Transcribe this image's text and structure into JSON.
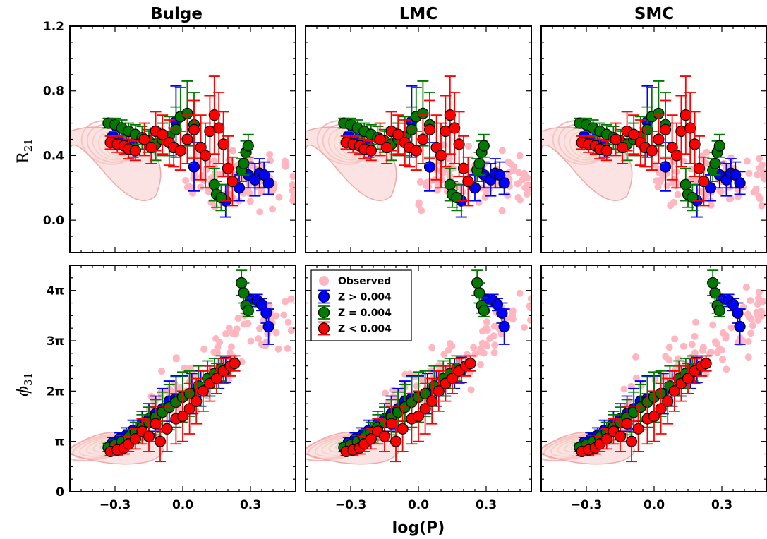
{
  "figure": {
    "xlabel": "log(P)",
    "panels": [
      "Bulge",
      "LMC",
      "SMC"
    ]
  },
  "legend": {
    "placement": "upper-left of bottom-middle panel",
    "entries": [
      {
        "label": "Observed",
        "color": "#ffb6c1"
      },
      {
        "label": "Z > 0.004",
        "color": "#0000ff"
      },
      {
        "label": "Z = 0.004",
        "color": "#007a00"
      },
      {
        "label": "Z < 0.004",
        "color": "#ff0000"
      }
    ]
  },
  "chart_data": [
    {
      "type": "scatter",
      "row": "R21",
      "ylabel": "R21",
      "xlim": [
        -0.5,
        0.5
      ],
      "ylim": [
        -0.2,
        1.2
      ],
      "xticks": [
        -0.3,
        0.0,
        0.3
      ],
      "xtick_labels": [
        "−0.3",
        "0.0",
        "0.3"
      ],
      "yticks": [
        0.0,
        0.4,
        0.8,
        1.2
      ],
      "ytick_labels": [
        "0.0",
        "0.4",
        "0.8",
        "1.2"
      ],
      "series": [
        {
          "name": "Z > 0.004",
          "color": "#0000ff",
          "points": [
            [
              -0.31,
              0.52,
              0.05
            ],
            [
              -0.28,
              0.49,
              0.05
            ],
            [
              -0.25,
              0.47,
              0.06
            ],
            [
              -0.22,
              0.46,
              0.07
            ],
            [
              -0.03,
              0.61,
              0.22
            ],
            [
              0.05,
              0.33,
              0.15
            ],
            [
              0.19,
              0.12,
              0.1
            ],
            [
              0.25,
              0.2,
              0.08
            ],
            [
              0.29,
              0.28,
              0.08
            ],
            [
              0.32,
              0.25,
              0.1
            ],
            [
              0.34,
              0.29,
              0.09
            ],
            [
              0.36,
              0.28,
              0.08
            ],
            [
              0.38,
              0.23,
              0.07
            ]
          ]
        },
        {
          "name": "Z = 0.004",
          "color": "#007a00",
          "points": [
            [
              -0.33,
              0.6,
              0.03
            ],
            [
              -0.3,
              0.59,
              0.04
            ],
            [
              -0.27,
              0.57,
              0.05
            ],
            [
              -0.24,
              0.55,
              0.05
            ],
            [
              -0.21,
              0.53,
              0.06
            ],
            [
              -0.18,
              0.51,
              0.07
            ],
            [
              -0.15,
              0.49,
              0.07
            ],
            [
              -0.12,
              0.47,
              0.1
            ],
            [
              -0.09,
              0.5,
              0.1
            ],
            [
              -0.06,
              0.52,
              0.12
            ],
            [
              -0.03,
              0.56,
              0.14
            ],
            [
              -0.01,
              0.64,
              0.18
            ],
            [
              0.02,
              0.66,
              0.2
            ],
            [
              0.05,
              0.59,
              0.2
            ],
            [
              0.14,
              0.22,
              0.1
            ],
            [
              0.15,
              0.16,
              0.08
            ],
            [
              0.17,
              0.14,
              0.08
            ],
            [
              0.26,
              0.31,
              0.07
            ],
            [
              0.27,
              0.35,
              0.07
            ],
            [
              0.28,
              0.42,
              0.07
            ],
            [
              0.29,
              0.46,
              0.07
            ]
          ]
        },
        {
          "name": "Z < 0.004",
          "color": "#ff0000",
          "points": [
            [
              -0.32,
              0.48,
              0.04
            ],
            [
              -0.29,
              0.47,
              0.05
            ],
            [
              -0.26,
              0.46,
              0.05
            ],
            [
              -0.24,
              0.44,
              0.06
            ],
            [
              -0.21,
              0.43,
              0.06
            ],
            [
              -0.17,
              0.5,
              0.1
            ],
            [
              -0.14,
              0.45,
              0.1
            ],
            [
              -0.12,
              0.55,
              0.12
            ],
            [
              -0.09,
              0.53,
              0.12
            ],
            [
              -0.06,
              0.48,
              0.14
            ],
            [
              -0.04,
              0.45,
              0.12
            ],
            [
              -0.01,
              0.43,
              0.12
            ],
            [
              0.02,
              0.5,
              0.15
            ],
            [
              0.05,
              0.56,
              0.18
            ],
            [
              0.08,
              0.45,
              0.2
            ],
            [
              0.1,
              0.4,
              0.2
            ],
            [
              0.12,
              0.55,
              0.22
            ],
            [
              0.14,
              0.65,
              0.24
            ],
            [
              0.16,
              0.57,
              0.22
            ],
            [
              0.18,
              0.47,
              0.2
            ],
            [
              0.2,
              0.32,
              0.2
            ],
            [
              0.22,
              0.24,
              0.15
            ]
          ]
        }
      ]
    },
    {
      "type": "scatter",
      "row": "phi31",
      "ylabel": "φ31",
      "xlim": [
        -0.5,
        0.5
      ],
      "ylim": [
        0,
        4.5
      ],
      "y_units": "multiples of pi",
      "xticks": [
        -0.3,
        0.0,
        0.3
      ],
      "xtick_labels": [
        "−0.3",
        "0.0",
        "0.3"
      ],
      "yticks": [
        0,
        1,
        2,
        3,
        4
      ],
      "ytick_labels": [
        "0",
        "π",
        "2π",
        "3π",
        "4π"
      ],
      "series": [
        {
          "name": "Z > 0.004",
          "color": "#0000ff",
          "points": [
            [
              -0.31,
              0.98,
              0.1
            ],
            [
              -0.28,
              1.05,
              0.12
            ],
            [
              -0.25,
              1.12,
              0.15
            ],
            [
              -0.22,
              1.22,
              0.2
            ],
            [
              -0.18,
              1.35,
              0.25
            ],
            [
              -0.15,
              1.45,
              0.3
            ],
            [
              -0.12,
              1.55,
              0.35
            ],
            [
              -0.09,
              1.65,
              0.4
            ],
            [
              -0.06,
              1.8,
              0.4
            ],
            [
              -0.03,
              1.85,
              0.45
            ],
            [
              0.0,
              1.9,
              0.4
            ],
            [
              0.04,
              1.95,
              0.4
            ],
            [
              0.08,
              2.05,
              0.35
            ],
            [
              0.12,
              2.2,
              0.3
            ],
            [
              0.16,
              2.35,
              0.3
            ],
            [
              0.19,
              2.42,
              0.25
            ],
            [
              0.3,
              3.82,
              0.1
            ],
            [
              0.33,
              3.8,
              0.12
            ],
            [
              0.35,
              3.72,
              0.12
            ],
            [
              0.37,
              3.55,
              0.2
            ],
            [
              0.38,
              3.28,
              0.35
            ]
          ]
        },
        {
          "name": "Z = 0.004",
          "color": "#007a00",
          "points": [
            [
              -0.33,
              0.88,
              0.08
            ],
            [
              -0.3,
              0.93,
              0.1
            ],
            [
              -0.27,
              1.0,
              0.12
            ],
            [
              -0.24,
              1.08,
              0.15
            ],
            [
              -0.21,
              1.18,
              0.2
            ],
            [
              -0.18,
              1.28,
              0.25
            ],
            [
              -0.15,
              1.38,
              0.3
            ],
            [
              -0.12,
              1.48,
              0.35
            ],
            [
              -0.09,
              1.58,
              0.4
            ],
            [
              -0.06,
              1.68,
              0.45
            ],
            [
              -0.03,
              1.78,
              0.5
            ],
            [
              0.0,
              1.88,
              0.5
            ],
            [
              0.03,
              1.95,
              0.45
            ],
            [
              0.07,
              2.1,
              0.4
            ],
            [
              0.11,
              2.25,
              0.35
            ],
            [
              0.14,
              2.35,
              0.3
            ],
            [
              0.17,
              2.45,
              0.25
            ],
            [
              0.26,
              4.15,
              0.25
            ],
            [
              0.27,
              3.95,
              0.2
            ],
            [
              0.28,
              3.7,
              0.15
            ],
            [
              0.29,
              3.6,
              0.12
            ]
          ]
        },
        {
          "name": "Z < 0.004",
          "color": "#ff0000",
          "points": [
            [
              -0.32,
              0.8,
              0.08
            ],
            [
              -0.29,
              0.83,
              0.1
            ],
            [
              -0.26,
              0.87,
              0.12
            ],
            [
              -0.24,
              0.95,
              0.15
            ],
            [
              -0.21,
              1.05,
              0.2
            ],
            [
              -0.18,
              1.2,
              0.25
            ],
            [
              -0.15,
              1.1,
              0.3
            ],
            [
              -0.12,
              1.35,
              0.35
            ],
            [
              -0.1,
              1.0,
              0.4
            ],
            [
              -0.07,
              1.25,
              0.45
            ],
            [
              -0.03,
              1.45,
              0.5
            ],
            [
              0.0,
              1.5,
              0.5
            ],
            [
              0.03,
              1.65,
              0.5
            ],
            [
              0.06,
              1.8,
              0.45
            ],
            [
              0.09,
              2.0,
              0.4
            ],
            [
              0.12,
              2.15,
              0.35
            ],
            [
              0.15,
              2.25,
              0.3
            ],
            [
              0.18,
              2.4,
              0.25
            ],
            [
              0.21,
              2.5,
              0.2
            ],
            [
              0.23,
              2.55,
              0.15
            ]
          ]
        }
      ]
    }
  ]
}
